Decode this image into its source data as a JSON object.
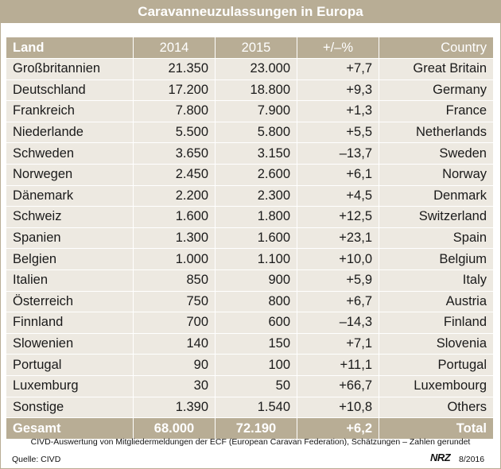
{
  "title": "Caravanneuzulassungen in Europa",
  "headers": {
    "land": "Land",
    "y2014": "2014",
    "y2015": "2015",
    "change": "+/–%",
    "country": "Country"
  },
  "chart_data": {
    "type": "table",
    "columns": [
      "Land",
      "2014",
      "2015",
      "+/–%",
      "Country"
    ],
    "rows": [
      {
        "land": "Großbritannien",
        "y2014": "21.350",
        "y2015": "23.000",
        "change": "+7,7",
        "country": "Great Britain"
      },
      {
        "land": "Deutschland",
        "y2014": "17.200",
        "y2015": "18.800",
        "change": "+9,3",
        "country": "Germany"
      },
      {
        "land": "Frankreich",
        "y2014": "7.800",
        "y2015": "7.900",
        "change": "+1,3",
        "country": "France"
      },
      {
        "land": "Niederlande",
        "y2014": "5.500",
        "y2015": "5.800",
        "change": "+5,5",
        "country": "Netherlands"
      },
      {
        "land": "Schweden",
        "y2014": "3.650",
        "y2015": "3.150",
        "change": "–13,7",
        "country": "Sweden"
      },
      {
        "land": "Norwegen",
        "y2014": "2.450",
        "y2015": "2.600",
        "change": "+6,1",
        "country": "Norway"
      },
      {
        "land": "Dänemark",
        "y2014": "2.200",
        "y2015": "2.300",
        "change": "+4,5",
        "country": "Denmark"
      },
      {
        "land": "Schweiz",
        "y2014": "1.600",
        "y2015": "1.800",
        "change": "+12,5",
        "country": "Switzerland"
      },
      {
        "land": "Spanien",
        "y2014": "1.300",
        "y2015": "1.600",
        "change": "+23,1",
        "country": "Spain"
      },
      {
        "land": "Belgien",
        "y2014": "1.000",
        "y2015": "1.100",
        "change": "+10,0",
        "country": "Belgium"
      },
      {
        "land": "Italien",
        "y2014": "850",
        "y2015": "900",
        "change": "+5,9",
        "country": "Italy"
      },
      {
        "land": "Österreich",
        "y2014": "750",
        "y2015": "800",
        "change": "+6,7",
        "country": "Austria"
      },
      {
        "land": "Finnland",
        "y2014": "700",
        "y2015": "600",
        "change": "–14,3",
        "country": "Finland"
      },
      {
        "land": "Slowenien",
        "y2014": "140",
        "y2015": "150",
        "change": "+7,1",
        "country": "Slovenia"
      },
      {
        "land": "Portugal",
        "y2014": "90",
        "y2015": "100",
        "change": "+11,1",
        "country": "Portugal"
      },
      {
        "land": "Luxemburg",
        "y2014": "30",
        "y2015": "50",
        "change": "+66,7",
        "country": "Luxembourg"
      },
      {
        "land": "Sonstige",
        "y2014": "1.390",
        "y2015": "1.540",
        "change": "+10,8",
        "country": "Others"
      }
    ],
    "total": {
      "land": "Gesamt",
      "y2014": "68.000",
      "y2015": "72.190",
      "change": "+6,2",
      "country": "Total"
    }
  },
  "footnote": "CIVD-Auswertung von Mitgliedermeldungen der ECF (European Caravan Federation), Schätzungen – Zahlen gerundet",
  "source": "Quelle: CIVD",
  "brand": "NRZ",
  "issue": "8/2016",
  "colors": {
    "header": "#b8ad95",
    "row": "#ede9e1",
    "text": "#1a1a1a"
  }
}
